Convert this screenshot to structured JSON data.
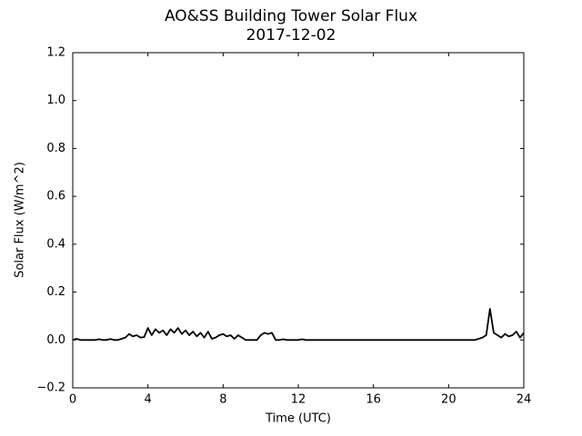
{
  "chart_data": {
    "type": "line",
    "title": "AO&SS Building Tower Solar Flux",
    "subtitle": "2017-12-02",
    "xlabel": "Time (UTC)",
    "ylabel": "Solar Flux (W/m^2)",
    "xlim": [
      0,
      24
    ],
    "ylim": [
      -0.2,
      1.2
    ],
    "xticks": [
      0,
      4,
      8,
      12,
      16,
      20,
      24
    ],
    "yticks": [
      {
        "value": -0.2,
        "label": "−0.2"
      },
      {
        "value": 0,
        "label": "0.0"
      },
      0.2,
      0.4,
      0.6,
      0.8,
      {
        "value": 1,
        "label": "1.0"
      },
      1.2
    ],
    "x": [
      0,
      0.2,
      0.4,
      0.6,
      0.8,
      1,
      1.2,
      1.4,
      1.6,
      1.8,
      2,
      2.2,
      2.4,
      2.6,
      2.8,
      3,
      3.2,
      3.4,
      3.6,
      3.8,
      4,
      4.2,
      4.4,
      4.6,
      4.8,
      5,
      5.2,
      5.4,
      5.6,
      5.8,
      6,
      6.2,
      6.4,
      6.6,
      6.8,
      7,
      7.2,
      7.4,
      7.6,
      7.8,
      8,
      8.2,
      8.4,
      8.6,
      8.8,
      9,
      9.2,
      9.4,
      9.6,
      9.8,
      10,
      10.2,
      10.4,
      10.6,
      10.8,
      11,
      11.2,
      11.4,
      11.6,
      11.8,
      12,
      12.2,
      12.4,
      12.6,
      12.8,
      13,
      13.2,
      13.4,
      13.6,
      13.8,
      14,
      14.2,
      14.4,
      14.6,
      14.8,
      15,
      15.2,
      15.4,
      15.6,
      15.8,
      16,
      16.2,
      16.4,
      16.6,
      16.8,
      17,
      17.2,
      17.4,
      17.6,
      17.8,
      18,
      18.2,
      18.4,
      18.6,
      18.8,
      19,
      19.2,
      19.4,
      19.6,
      19.8,
      20,
      20.2,
      20.4,
      20.6,
      20.8,
      21,
      21.2,
      21.4,
      21.6,
      21.8,
      22,
      22.2,
      22.4,
      22.6,
      22.8,
      23,
      23.2,
      23.4,
      23.6,
      23.8,
      24
    ],
    "series": [
      {
        "name": "Solar Flux",
        "color": "#000000",
        "values": [
          0,
          0.005,
          0,
          0,
          0,
          0,
          0,
          0.003,
          0,
          0,
          0.004,
          0,
          0,
          0.005,
          0.01,
          0.025,
          0.015,
          0.02,
          0.01,
          0.012,
          0.05,
          0.02,
          0.045,
          0.03,
          0.04,
          0.02,
          0.045,
          0.03,
          0.05,
          0.025,
          0.04,
          0.02,
          0.035,
          0.015,
          0.03,
          0.01,
          0.035,
          0.005,
          0.01,
          0.02,
          0.025,
          0.015,
          0.02,
          0.005,
          0.02,
          0.01,
          0,
          0,
          0,
          0,
          0.02,
          0.03,
          0.025,
          0.03,
          0,
          0,
          0.003,
          0,
          0,
          0,
          0,
          0.003,
          0,
          0,
          0,
          0,
          0,
          0,
          0,
          0,
          0,
          0,
          0,
          0,
          0,
          0,
          0,
          0,
          0,
          0,
          0,
          0,
          0,
          0,
          0,
          0,
          0,
          0,
          0,
          0,
          0,
          0,
          0,
          0,
          0,
          0,
          0,
          0,
          0,
          0,
          0,
          0,
          0,
          0,
          0,
          0,
          0,
          0,
          0.005,
          0.01,
          0.02,
          0.13,
          0.03,
          0.02,
          0.01,
          0.025,
          0.015,
          0.02,
          0.035,
          0.01,
          0.03
        ]
      }
    ]
  }
}
